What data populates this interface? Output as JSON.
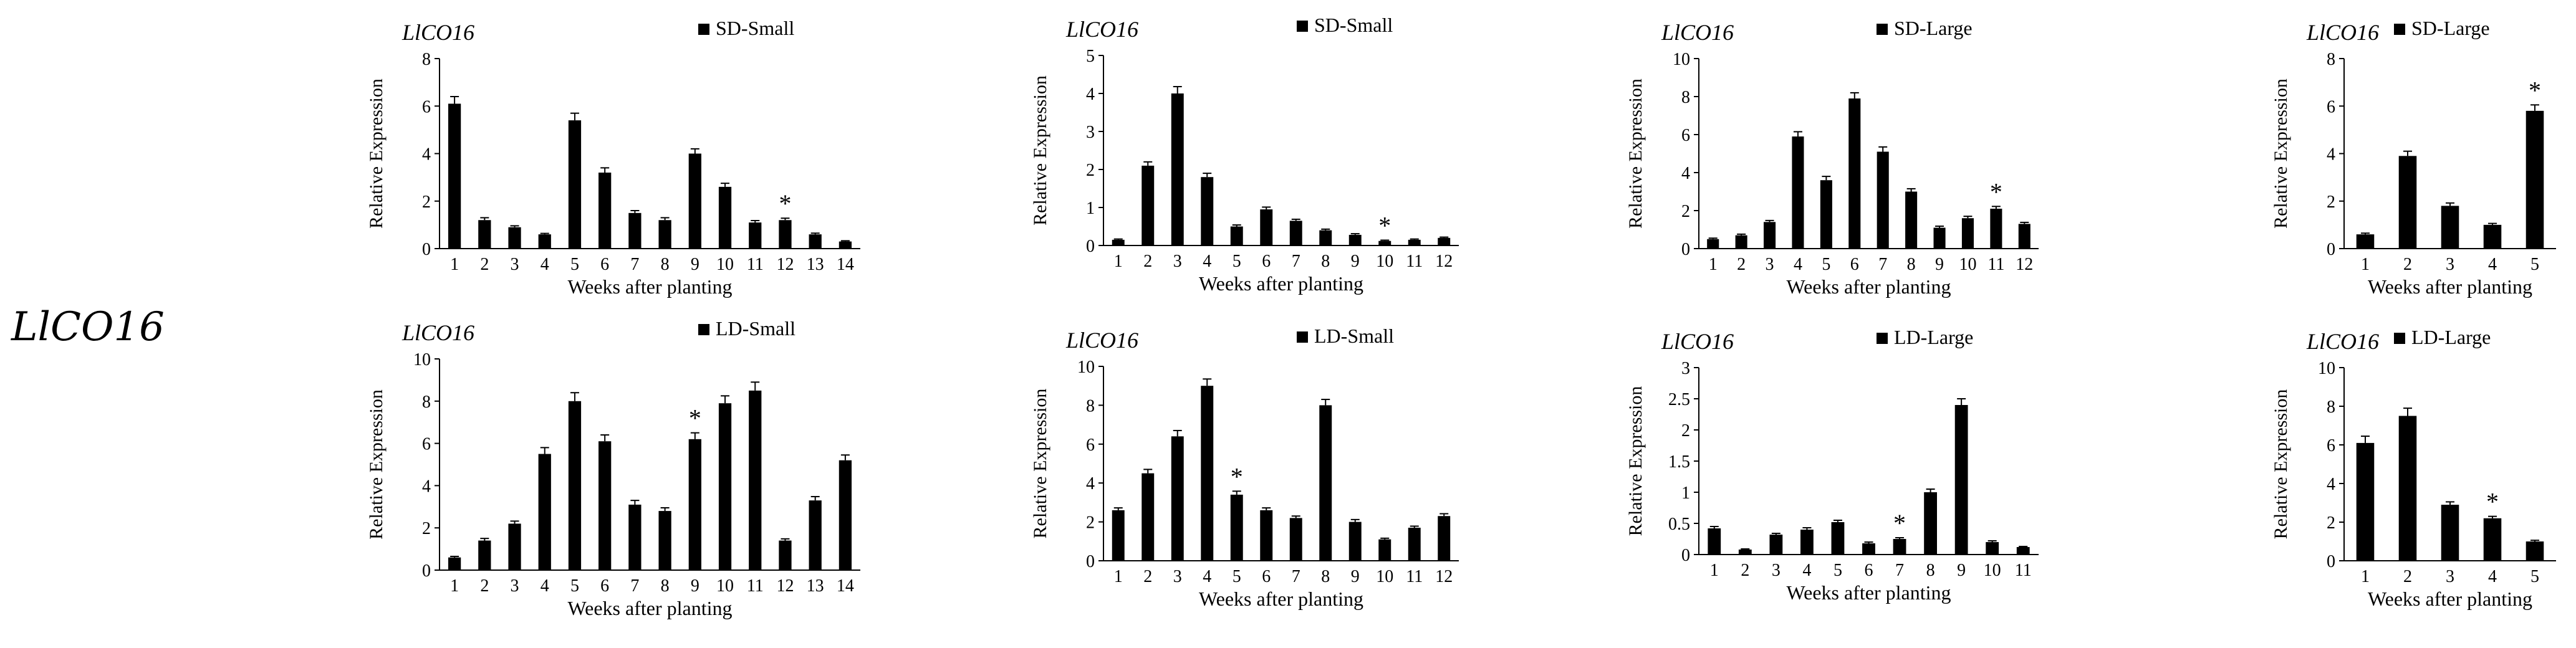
{
  "row_label": "LlCO16",
  "colors": {
    "bar": "#000000",
    "axis": "#000000",
    "text": "#000000"
  },
  "chart_data": [
    {
      "type": "bar",
      "gene": "LlCO16",
      "legend": "SD-Small",
      "xlabel": "Weeks after planting",
      "ylabel": "Relative Expression",
      "ylim": [
        0,
        8
      ],
      "yticks": [
        0,
        2,
        4,
        6,
        8
      ],
      "categories": [
        "1",
        "2",
        "3",
        "4",
        "5",
        "6",
        "7",
        "8",
        "9",
        "10",
        "11",
        "12",
        "13",
        "14"
      ],
      "values": [
        6.1,
        1.2,
        0.9,
        0.6,
        5.4,
        3.2,
        1.5,
        1.2,
        4.0,
        2.6,
        1.1,
        1.2,
        0.6,
        0.3
      ],
      "errors": [
        0.3,
        0.1,
        0.06,
        0.04,
        0.3,
        0.2,
        0.1,
        0.1,
        0.2,
        0.15,
        0.08,
        0.08,
        0.05,
        0.03
      ],
      "annotations": [
        {
          "category": "12",
          "text": "*"
        }
      ]
    },
    {
      "type": "bar",
      "gene": "LlCO16",
      "legend": "SD-Small",
      "xlabel": "Weeks after planting",
      "ylabel": "Relative Expression",
      "ylim": [
        0,
        5
      ],
      "yticks": [
        0,
        1,
        2,
        3,
        4,
        5
      ],
      "categories": [
        "1",
        "2",
        "3",
        "4",
        "5",
        "6",
        "7",
        "8",
        "9",
        "10",
        "11",
        "12"
      ],
      "values": [
        0.15,
        2.1,
        4.0,
        1.8,
        0.5,
        0.95,
        0.65,
        0.4,
        0.28,
        0.12,
        0.15,
        0.2
      ],
      "errors": [
        0.02,
        0.1,
        0.18,
        0.1,
        0.04,
        0.06,
        0.04,
        0.03,
        0.03,
        0.02,
        0.02,
        0.02
      ],
      "annotations": [
        {
          "category": "10",
          "text": "*"
        }
      ]
    },
    {
      "type": "bar",
      "gene": "LlCO16",
      "legend": "SD-Large",
      "xlabel": "Weeks after planting",
      "ylabel": "Relative Expression",
      "ylim": [
        0,
        10
      ],
      "yticks": [
        0,
        2,
        4,
        6,
        8,
        10
      ],
      "categories": [
        "1",
        "2",
        "3",
        "4",
        "5",
        "6",
        "7",
        "8",
        "9",
        "10",
        "11",
        "12"
      ],
      "values": [
        0.5,
        0.7,
        1.4,
        5.9,
        3.6,
        7.9,
        5.1,
        3.0,
        1.1,
        1.6,
        2.1,
        1.3
      ],
      "errors": [
        0.05,
        0.06,
        0.08,
        0.25,
        0.2,
        0.3,
        0.25,
        0.15,
        0.08,
        0.1,
        0.12,
        0.08
      ],
      "annotations": [
        {
          "category": "11",
          "text": "*"
        }
      ]
    },
    {
      "type": "bar",
      "gene": "LlCO16",
      "legend": "SD-Large",
      "xlabel": "Weeks after planting",
      "ylabel": "Relative Expression",
      "ylim": [
        0,
        8
      ],
      "yticks": [
        0,
        2,
        4,
        6,
        8
      ],
      "categories": [
        "1",
        "2",
        "3",
        "4",
        "5"
      ],
      "values": [
        0.6,
        3.9,
        1.8,
        1.0,
        5.8
      ],
      "errors": [
        0.05,
        0.2,
        0.12,
        0.06,
        0.25
      ],
      "annotations": [
        {
          "category": "5",
          "text": "*"
        }
      ]
    },
    {
      "type": "bar",
      "gene": "LlCO16",
      "legend": "LD-Small",
      "xlabel": "Weeks after planting",
      "ylabel": "Relative Expression",
      "ylim": [
        0,
        10
      ],
      "yticks": [
        0,
        2,
        4,
        6,
        8,
        10
      ],
      "categories": [
        "1",
        "2",
        "3",
        "4",
        "5",
        "6",
        "7",
        "8",
        "9",
        "10",
        "11",
        "12",
        "13",
        "14"
      ],
      "values": [
        0.6,
        1.4,
        2.2,
        5.5,
        8.0,
        6.1,
        3.1,
        2.8,
        6.2,
        7.9,
        8.5,
        1.4,
        3.3,
        5.2
      ],
      "errors": [
        0.05,
        0.1,
        0.12,
        0.3,
        0.4,
        0.3,
        0.2,
        0.15,
        0.3,
        0.35,
        0.4,
        0.08,
        0.18,
        0.25
      ],
      "annotations": [
        {
          "category": "9",
          "text": "*"
        }
      ]
    },
    {
      "type": "bar",
      "gene": "LlCO16",
      "legend": "LD-Small",
      "xlabel": "Weeks after planting",
      "ylabel": "Relative Expression",
      "ylim": [
        0,
        10
      ],
      "yticks": [
        0,
        2,
        4,
        6,
        8,
        10
      ],
      "categories": [
        "1",
        "2",
        "3",
        "4",
        "5",
        "6",
        "7",
        "8",
        "9",
        "10",
        "11",
        "12"
      ],
      "values": [
        2.6,
        4.5,
        6.4,
        9.0,
        3.4,
        2.6,
        2.2,
        8.0,
        2.0,
        1.1,
        1.7,
        2.3
      ],
      "errors": [
        0.12,
        0.2,
        0.3,
        0.35,
        0.18,
        0.12,
        0.1,
        0.3,
        0.12,
        0.06,
        0.08,
        0.12
      ],
      "annotations": [
        {
          "category": "5",
          "text": "*"
        }
      ]
    },
    {
      "type": "bar",
      "gene": "LlCO16",
      "legend": "LD-Large",
      "xlabel": "Weeks after planting",
      "ylabel": "Relative Expression",
      "ylim": [
        0,
        3
      ],
      "yticks": [
        0,
        0.5,
        1,
        1.5,
        2,
        2.5,
        3
      ],
      "categories": [
        "1",
        "2",
        "3",
        "4",
        "5",
        "6",
        "7",
        "8",
        "9",
        "10",
        "11"
      ],
      "values": [
        0.42,
        0.08,
        0.32,
        0.4,
        0.52,
        0.18,
        0.25,
        1.0,
        2.4,
        0.2,
        0.12
      ],
      "errors": [
        0.03,
        0.01,
        0.02,
        0.03,
        0.03,
        0.02,
        0.02,
        0.05,
        0.1,
        0.02,
        0.01
      ],
      "annotations": [
        {
          "category": "7",
          "text": "*"
        }
      ]
    },
    {
      "type": "bar",
      "gene": "LlCO16",
      "legend": "LD-Large",
      "xlabel": "Weeks after planting",
      "ylabel": "Relative Expression",
      "ylim": [
        0,
        10
      ],
      "yticks": [
        0,
        2,
        4,
        6,
        8,
        10
      ],
      "categories": [
        "1",
        "2",
        "3",
        "4",
        "5"
      ],
      "values": [
        6.1,
        7.5,
        2.9,
        2.2,
        1.0
      ],
      "errors": [
        0.35,
        0.4,
        0.15,
        0.1,
        0.06
      ],
      "annotations": [
        {
          "category": "4",
          "text": "*"
        }
      ]
    }
  ]
}
